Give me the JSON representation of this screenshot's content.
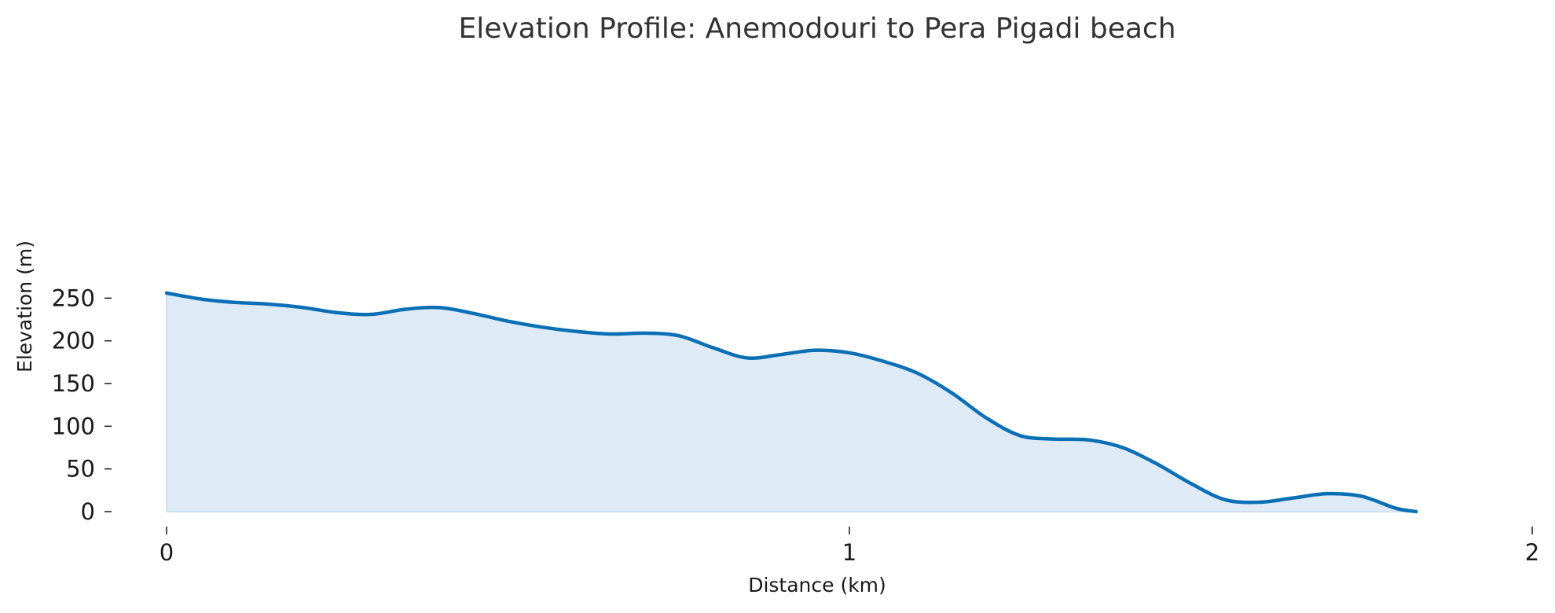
{
  "chart_data": {
    "type": "area",
    "title": "Elevation Profile: Anemodouri to Pera Pigadi beach",
    "xlabel": "Distance (km)",
    "ylabel": "Elevation (m)",
    "xlim": [
      0,
      2
    ],
    "ylim": [
      0,
      260
    ],
    "x_ticks": [
      0,
      1,
      2
    ],
    "y_ticks": [
      0,
      50,
      100,
      150,
      200,
      250
    ],
    "grid": false,
    "line_color": "#0b6fb5",
    "fill_color": "#deebf7",
    "series": [
      {
        "x": [
          0.0,
          0.05,
          0.1,
          0.15,
          0.2,
          0.25,
          0.3,
          0.35,
          0.4,
          0.45,
          0.5,
          0.55,
          0.6,
          0.65,
          0.7,
          0.75,
          0.8,
          0.85,
          0.9,
          0.95,
          1.0,
          1.05,
          1.1,
          1.15,
          1.2,
          1.25,
          1.3,
          1.35,
          1.4,
          1.45,
          1.5,
          1.55,
          1.6,
          1.65,
          1.7,
          1.75,
          1.8,
          1.83
        ],
        "y": [
          256,
          249,
          245,
          243,
          239,
          233,
          231,
          237,
          239,
          232,
          223,
          216,
          211,
          208,
          209,
          206,
          192,
          180,
          184,
          189,
          186,
          176,
          162,
          139,
          110,
          89,
          85,
          84,
          75,
          56,
          33,
          14,
          11,
          16,
          21,
          18,
          4,
          0
        ]
      }
    ]
  }
}
